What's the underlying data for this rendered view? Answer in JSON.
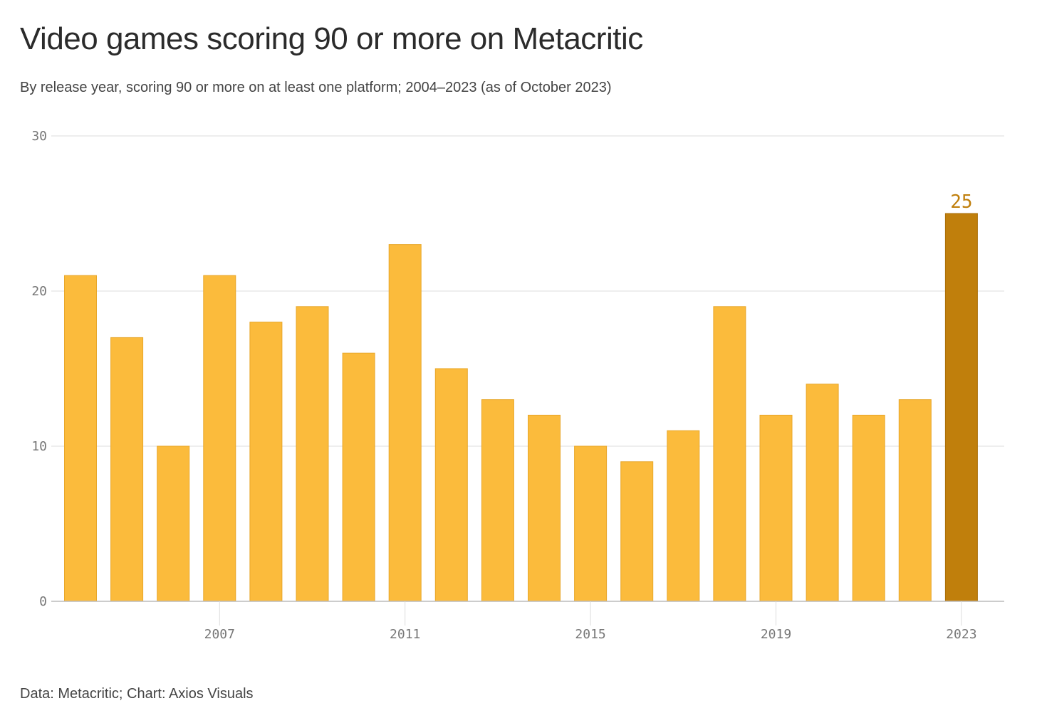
{
  "chart_data": {
    "type": "bar",
    "title": "Video games scoring 90 or more on Metacritic",
    "subtitle": "By release year, scoring 90 or more on at least one platform; 2004–2023 (as of October 2023)",
    "source": "Data: Metacritic; Chart: Axios Visuals",
    "categories": [
      2004,
      2005,
      2006,
      2007,
      2008,
      2009,
      2010,
      2011,
      2012,
      2013,
      2014,
      2015,
      2016,
      2017,
      2018,
      2019,
      2020,
      2021,
      2022,
      2023
    ],
    "values": [
      21,
      17,
      10,
      21,
      18,
      19,
      16,
      23,
      15,
      13,
      12,
      10,
      9,
      11,
      19,
      12,
      14,
      12,
      13,
      25
    ],
    "ylim": [
      0,
      30
    ],
    "yticks": [
      0,
      10,
      20,
      30
    ],
    "xticks": [
      2007,
      2011,
      2015,
      2019,
      2023
    ],
    "highlight": {
      "category": 2023,
      "label": "25"
    },
    "xlabel": "",
    "ylabel": "",
    "grid": true,
    "colors": {
      "bar": "#fbbb3c",
      "bar_stroke": "#e8a72a",
      "highlight": "#c07f0c",
      "highlight_stroke": "#a96e08",
      "grid": "#dddddd",
      "axis": "#bbbbbb"
    }
  }
}
